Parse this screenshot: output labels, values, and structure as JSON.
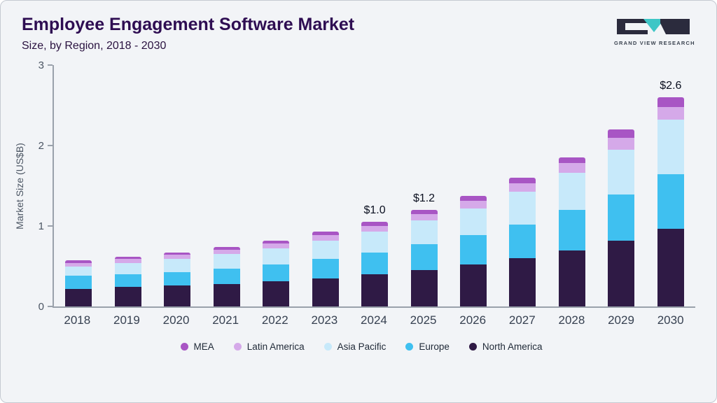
{
  "header": {
    "title": "Employee Engagement Software Market",
    "subtitle": "Size, by Region, 2018 - 2030"
  },
  "logo": {
    "text": "GRAND VIEW RESEARCH",
    "accent_color": "#3ec6c6",
    "dark_color": "#2b2b3d"
  },
  "chart_data": {
    "type": "bar",
    "stacked": true,
    "title": "Employee Engagement Software Market Size, by Region, 2018 - 2030",
    "ylabel": "Market Size (US$B)",
    "ylim": [
      0,
      3
    ],
    "yticks": [
      0,
      1,
      2,
      3
    ],
    "grid": false,
    "legend_position": "bottom",
    "categories": [
      "2018",
      "2019",
      "2020",
      "2021",
      "2022",
      "2023",
      "2024",
      "2025",
      "2026",
      "2027",
      "2028",
      "2029",
      "2030"
    ],
    "series": [
      {
        "name": "North America",
        "color": "#2f1a45",
        "values": [
          0.22,
          0.24,
          0.26,
          0.28,
          0.31,
          0.35,
          0.4,
          0.45,
          0.52,
          0.6,
          0.7,
          0.82,
          0.97
        ]
      },
      {
        "name": "Europe",
        "color": "#3fc0f0",
        "values": [
          0.16,
          0.16,
          0.17,
          0.19,
          0.21,
          0.24,
          0.27,
          0.32,
          0.37,
          0.42,
          0.5,
          0.57,
          0.67
        ]
      },
      {
        "name": "Asia Pacific",
        "color": "#c7e9fa",
        "values": [
          0.12,
          0.14,
          0.16,
          0.18,
          0.2,
          0.23,
          0.26,
          0.3,
          0.33,
          0.41,
          0.46,
          0.56,
          0.68
        ]
      },
      {
        "name": "Latin America",
        "color": "#d5a9e9",
        "values": [
          0.04,
          0.05,
          0.05,
          0.05,
          0.06,
          0.07,
          0.07,
          0.08,
          0.09,
          0.1,
          0.12,
          0.15,
          0.16
        ]
      },
      {
        "name": "MEA",
        "color": "#a855c4",
        "values": [
          0.03,
          0.03,
          0.03,
          0.04,
          0.04,
          0.04,
          0.05,
          0.05,
          0.06,
          0.07,
          0.07,
          0.1,
          0.12
        ]
      }
    ],
    "legend": [
      "MEA",
      "Latin America",
      "Asia Pacific",
      "Europe",
      "North America"
    ],
    "annotations": [
      {
        "category": "2024",
        "label": "$1.0"
      },
      {
        "category": "2025",
        "label": "$1.2"
      },
      {
        "category": "2030",
        "label": "$2.6"
      }
    ]
  }
}
